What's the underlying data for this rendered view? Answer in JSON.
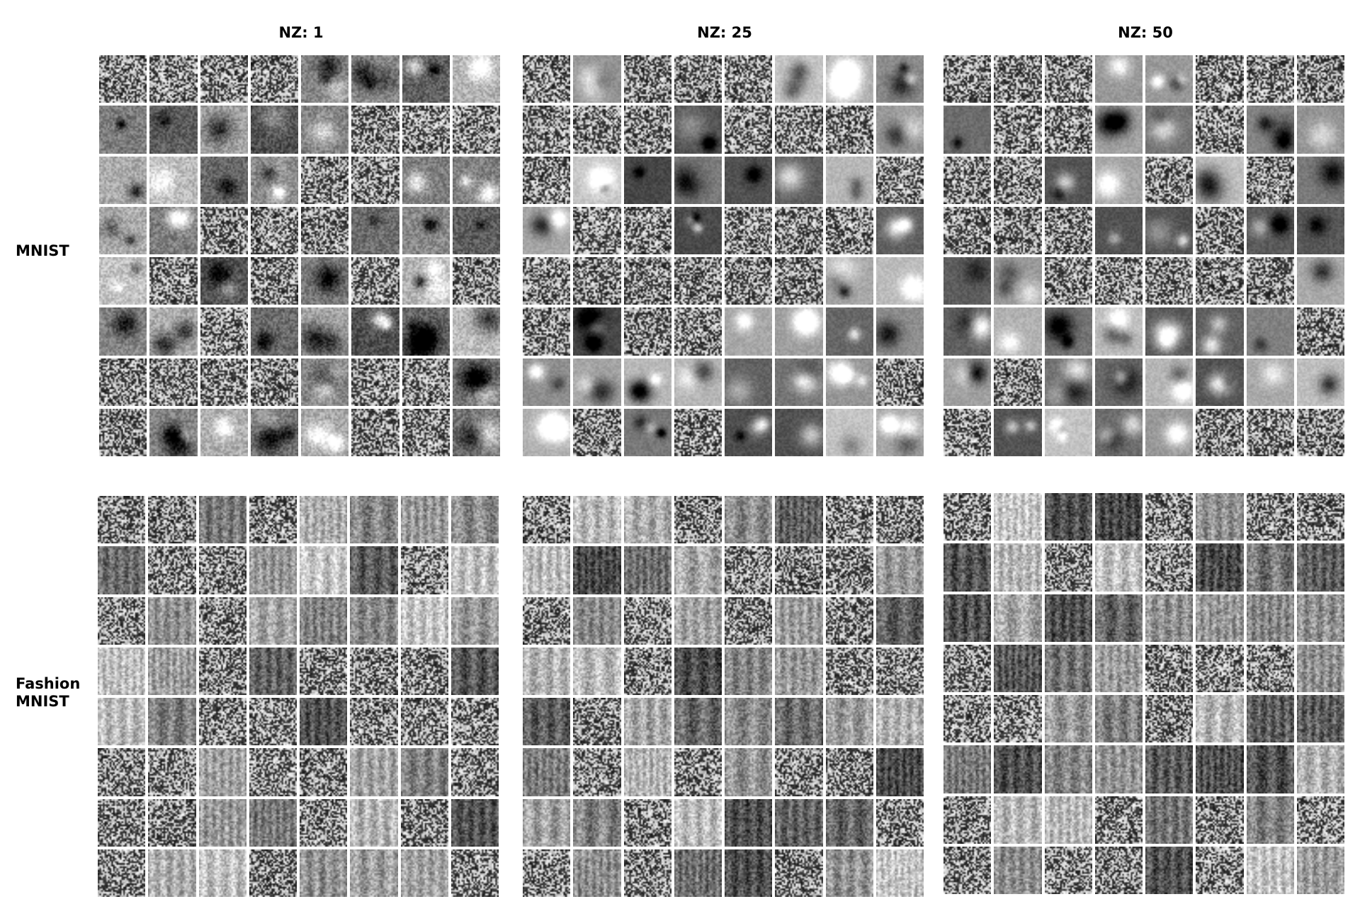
{
  "columns": [
    {
      "title": "NZ: 1"
    },
    {
      "title": "NZ: 25"
    },
    {
      "title": "NZ: 50"
    }
  ],
  "rows": [
    {
      "label_lines": [
        "MNIST"
      ]
    },
    {
      "label_lines": [
        "Fashion",
        "MNIST"
      ]
    }
  ],
  "grid": {
    "rows": 8,
    "cols": 8,
    "tile_pixels": 28
  },
  "colors": {
    "background": "#ffffff",
    "text": "#000000"
  }
}
